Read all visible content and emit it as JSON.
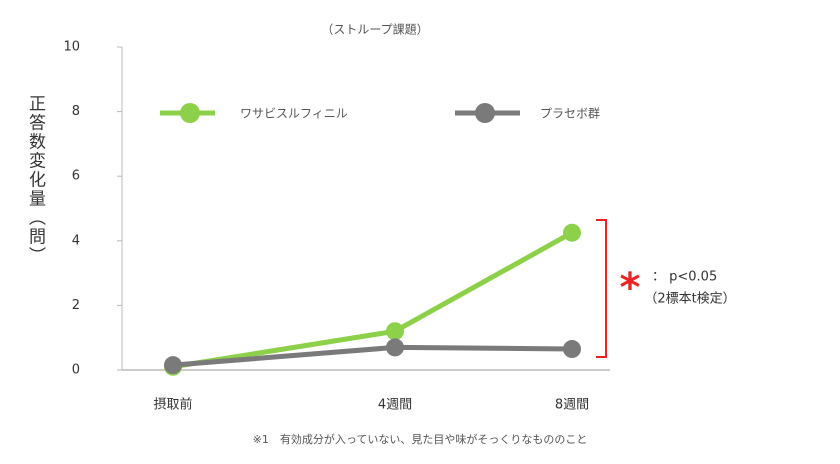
{
  "chart_data": {
    "type": "line",
    "title": "（ストループ課題）",
    "y_label": "正答数変化量（問）",
    "categories": [
      "摂取前",
      "4週間",
      "8週間"
    ],
    "series": [
      {
        "name": "ワサビスルフィニル",
        "color": "#8dd14b",
        "values": [
          0.1,
          1.2,
          4.25
        ]
      },
      {
        "name": "プラセボ群",
        "color": "#7a7a7a",
        "values": [
          0.15,
          0.7,
          0.65
        ]
      }
    ],
    "ylim": [
      0,
      10
    ],
    "yticks": [
      0,
      2,
      4,
      6,
      8,
      10
    ],
    "annotation": {
      "marker": "*",
      "text": "： p<0.05",
      "test": "（2標本t検定）",
      "color": "#ee2222"
    },
    "footnote": "※1　有効成分が入っていない、見た目や味がそっくりなもののこと"
  }
}
